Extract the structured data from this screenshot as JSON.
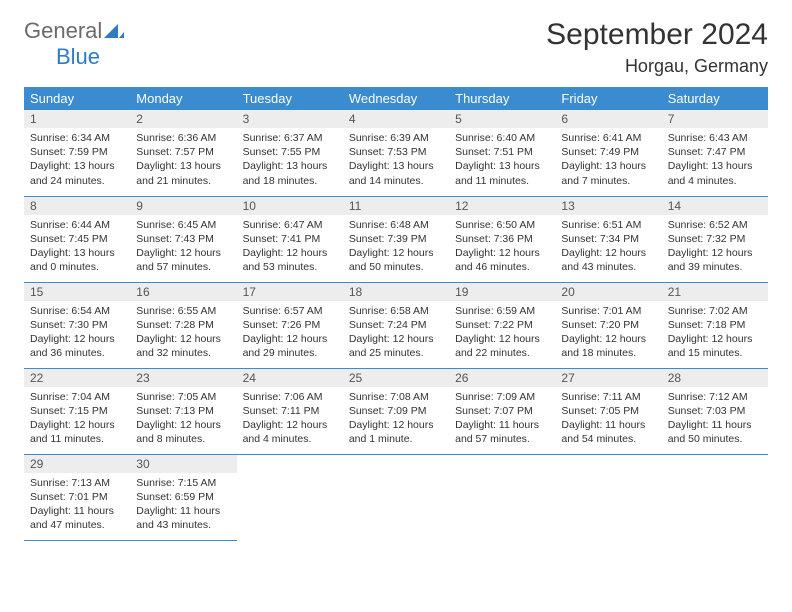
{
  "brand": {
    "word1": "General",
    "word2": "Blue"
  },
  "title": "September 2024",
  "location": "Horgau, Germany",
  "colors": {
    "header_bg": "#3a8bd0",
    "header_fg": "#ffffff",
    "daynum_bg": "#ededed",
    "daynum_fg": "#555555",
    "text": "#333333",
    "rule": "#3a8bd0",
    "logo_gray": "#6b6b6b",
    "logo_blue": "#2f7bc4"
  },
  "weekdays": [
    "Sunday",
    "Monday",
    "Tuesday",
    "Wednesday",
    "Thursday",
    "Friday",
    "Saturday"
  ],
  "days": [
    {
      "n": 1,
      "sunrise": "6:34 AM",
      "sunset": "7:59 PM",
      "day_h": 13,
      "day_m": 24
    },
    {
      "n": 2,
      "sunrise": "6:36 AM",
      "sunset": "7:57 PM",
      "day_h": 13,
      "day_m": 21
    },
    {
      "n": 3,
      "sunrise": "6:37 AM",
      "sunset": "7:55 PM",
      "day_h": 13,
      "day_m": 18
    },
    {
      "n": 4,
      "sunrise": "6:39 AM",
      "sunset": "7:53 PM",
      "day_h": 13,
      "day_m": 14
    },
    {
      "n": 5,
      "sunrise": "6:40 AM",
      "sunset": "7:51 PM",
      "day_h": 13,
      "day_m": 11
    },
    {
      "n": 6,
      "sunrise": "6:41 AM",
      "sunset": "7:49 PM",
      "day_h": 13,
      "day_m": 7
    },
    {
      "n": 7,
      "sunrise": "6:43 AM",
      "sunset": "7:47 PM",
      "day_h": 13,
      "day_m": 4
    },
    {
      "n": 8,
      "sunrise": "6:44 AM",
      "sunset": "7:45 PM",
      "day_h": 13,
      "day_m": 0
    },
    {
      "n": 9,
      "sunrise": "6:45 AM",
      "sunset": "7:43 PM",
      "day_h": 12,
      "day_m": 57
    },
    {
      "n": 10,
      "sunrise": "6:47 AM",
      "sunset": "7:41 PM",
      "day_h": 12,
      "day_m": 53
    },
    {
      "n": 11,
      "sunrise": "6:48 AM",
      "sunset": "7:39 PM",
      "day_h": 12,
      "day_m": 50
    },
    {
      "n": 12,
      "sunrise": "6:50 AM",
      "sunset": "7:36 PM",
      "day_h": 12,
      "day_m": 46
    },
    {
      "n": 13,
      "sunrise": "6:51 AM",
      "sunset": "7:34 PM",
      "day_h": 12,
      "day_m": 43
    },
    {
      "n": 14,
      "sunrise": "6:52 AM",
      "sunset": "7:32 PM",
      "day_h": 12,
      "day_m": 39
    },
    {
      "n": 15,
      "sunrise": "6:54 AM",
      "sunset": "7:30 PM",
      "day_h": 12,
      "day_m": 36
    },
    {
      "n": 16,
      "sunrise": "6:55 AM",
      "sunset": "7:28 PM",
      "day_h": 12,
      "day_m": 32
    },
    {
      "n": 17,
      "sunrise": "6:57 AM",
      "sunset": "7:26 PM",
      "day_h": 12,
      "day_m": 29
    },
    {
      "n": 18,
      "sunrise": "6:58 AM",
      "sunset": "7:24 PM",
      "day_h": 12,
      "day_m": 25
    },
    {
      "n": 19,
      "sunrise": "6:59 AM",
      "sunset": "7:22 PM",
      "day_h": 12,
      "day_m": 22
    },
    {
      "n": 20,
      "sunrise": "7:01 AM",
      "sunset": "7:20 PM",
      "day_h": 12,
      "day_m": 18
    },
    {
      "n": 21,
      "sunrise": "7:02 AM",
      "sunset": "7:18 PM",
      "day_h": 12,
      "day_m": 15
    },
    {
      "n": 22,
      "sunrise": "7:04 AM",
      "sunset": "7:15 PM",
      "day_h": 12,
      "day_m": 11
    },
    {
      "n": 23,
      "sunrise": "7:05 AM",
      "sunset": "7:13 PM",
      "day_h": 12,
      "day_m": 8
    },
    {
      "n": 24,
      "sunrise": "7:06 AM",
      "sunset": "7:11 PM",
      "day_h": 12,
      "day_m": 4
    },
    {
      "n": 25,
      "sunrise": "7:08 AM",
      "sunset": "7:09 PM",
      "day_h": 12,
      "day_m": 1
    },
    {
      "n": 26,
      "sunrise": "7:09 AM",
      "sunset": "7:07 PM",
      "day_h": 11,
      "day_m": 57
    },
    {
      "n": 27,
      "sunrise": "7:11 AM",
      "sunset": "7:05 PM",
      "day_h": 11,
      "day_m": 54
    },
    {
      "n": 28,
      "sunrise": "7:12 AM",
      "sunset": "7:03 PM",
      "day_h": 11,
      "day_m": 50
    },
    {
      "n": 29,
      "sunrise": "7:13 AM",
      "sunset": "7:01 PM",
      "day_h": 11,
      "day_m": 47
    },
    {
      "n": 30,
      "sunrise": "7:15 AM",
      "sunset": "6:59 PM",
      "day_h": 11,
      "day_m": 43
    }
  ],
  "labels": {
    "sunrise": "Sunrise:",
    "sunset": "Sunset:",
    "daylight": "Daylight:",
    "hours": "hours",
    "and": "and",
    "minutes": "minutes.",
    "minute": "minute."
  }
}
